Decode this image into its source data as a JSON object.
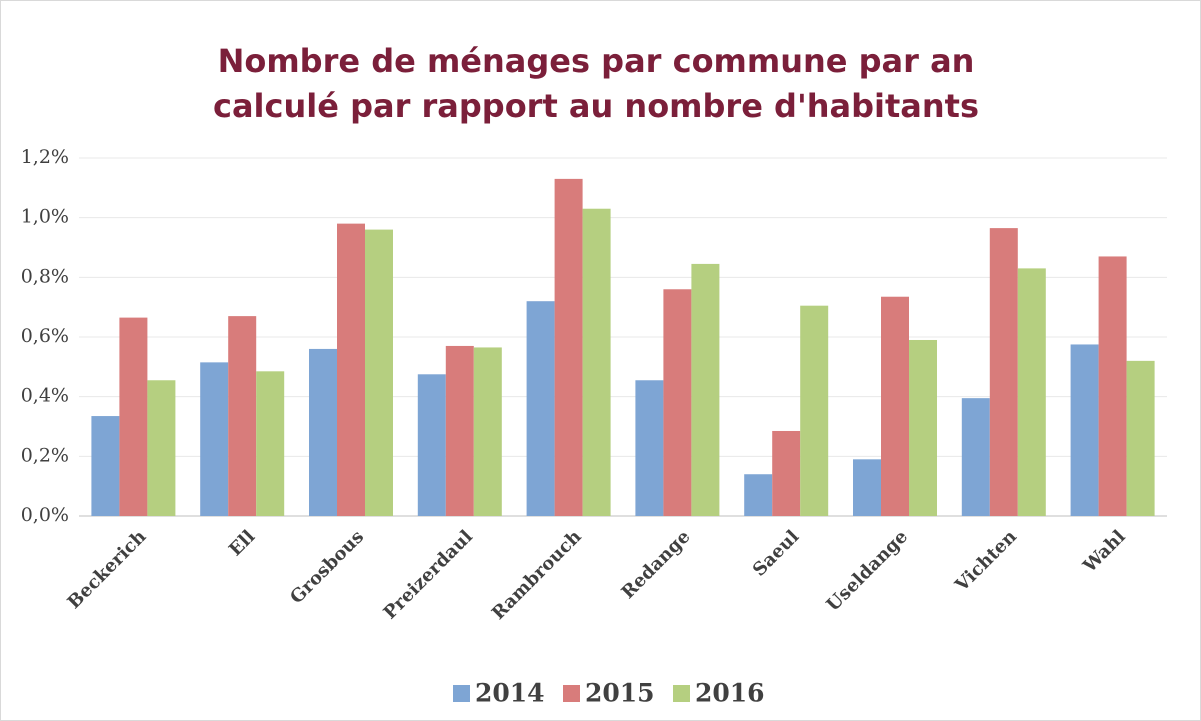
{
  "chart_data": {
    "type": "bar",
    "title": "Nombre de ménages par commune par an calculé par rapport au nombre d'habitants",
    "categories": [
      "Beckerich",
      "Ell",
      "Grosbous",
      "Preizerdaul",
      "Rambrouch",
      "Redange",
      "Saeul",
      "Useldange",
      "Vichten",
      "Wahl"
    ],
    "series": [
      {
        "name": "2014",
        "color": "#7ea5d4",
        "values": [
          0.335,
          0.515,
          0.56,
          0.475,
          0.72,
          0.455,
          0.14,
          0.19,
          0.395,
          0.575
        ]
      },
      {
        "name": "2015",
        "color": "#d87c7b",
        "values": [
          0.665,
          0.67,
          0.98,
          0.57,
          1.13,
          0.76,
          0.285,
          0.735,
          0.965,
          0.87
        ]
      },
      {
        "name": "2016",
        "color": "#b5cf80",
        "values": [
          0.455,
          0.485,
          0.96,
          0.565,
          1.03,
          0.845,
          0.705,
          0.59,
          0.83,
          0.52
        ]
      }
    ],
    "ylim": [
      0,
      1.2
    ],
    "yticks": [
      {
        "value": 0,
        "label": "0,0%"
      },
      {
        "value": 0.2,
        "label": "0,2%"
      },
      {
        "value": 0.4,
        "label": "0,4%"
      },
      {
        "value": 0.6,
        "label": "0,6%"
      },
      {
        "value": 0.8,
        "label": "0,8%"
      },
      {
        "value": 1.0,
        "label": "1,0%"
      },
      {
        "value": 1.2,
        "label": "1,2%"
      }
    ],
    "grid": true,
    "legend": "bottom"
  }
}
